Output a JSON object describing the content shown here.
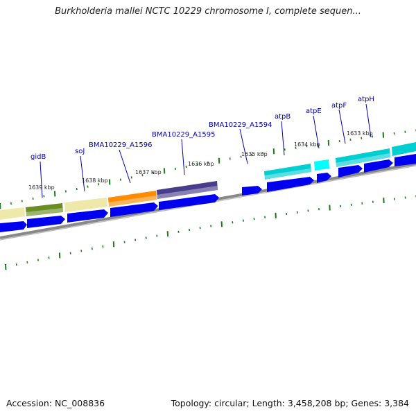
{
  "title": "Burkholderia mallei NCTC 10229 chromosome I, complete sequen...",
  "footer": {
    "accession": "Accession: NC_008836",
    "topology": "Topology: circular; Length: 3,458,208 bp; Genes: 3,384"
  },
  "colors": {
    "gene_label": "#0000aa",
    "cds_arrow": "#0000ee",
    "tick": "#1a7a1a",
    "backbone": "#888888"
  },
  "genes": [
    {
      "name": "gidB",
      "color": "#6b8e23"
    },
    {
      "name": "soJ",
      "color": "#eee8aa"
    },
    {
      "name": "BMA10229_A1596",
      "color": "#ff8c00"
    },
    {
      "name": "BMA10229_A1595",
      "color": "#483d8b"
    },
    {
      "name": "BMA10229_A1594",
      "color": "#0000ee"
    },
    {
      "name": "atpB",
      "color": "#00ced1"
    },
    {
      "name": "atpE",
      "color": "#00ffff"
    },
    {
      "name": "atpF",
      "color": "#00ced1"
    },
    {
      "name": "atpH",
      "color": "#00ced1"
    }
  ],
  "position_labels": [
    "1639 kbp",
    "1638 kbp",
    "1637 kbp",
    "1636 kbp",
    "1635 kbp",
    "1634 kbp",
    "1633 kbp"
  ]
}
